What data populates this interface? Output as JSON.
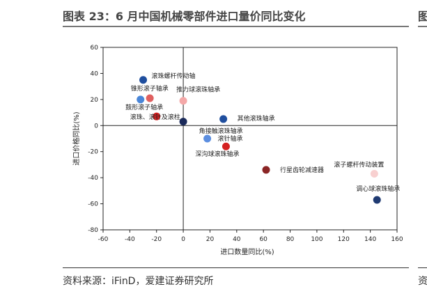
{
  "header": {
    "title": "图表 23：6 月中国机械零部件进口量价同比变化",
    "next_title_fragment": "图"
  },
  "footer": {
    "source": "资料来源：iFinD，爱建证券研究所",
    "next_source_fragment": "资"
  },
  "chart_data": {
    "type": "scatter",
    "xlabel": "进口数量同比(%)",
    "ylabel": "进口价格同比(%)",
    "xlim": [
      -60,
      160
    ],
    "ylim": [
      -80,
      60
    ],
    "xticks": [
      -60,
      -40,
      -20,
      0,
      20,
      40,
      60,
      80,
      100,
      120,
      140,
      160
    ],
    "yticks": [
      -80,
      -60,
      -40,
      -20,
      0,
      20,
      40,
      60
    ],
    "grid": false,
    "points": [
      {
        "label": "滚珠螺杆传动轴",
        "x": -30,
        "y": 35,
        "color": "#1f4e9e"
      },
      {
        "label": "锥形滚子轴承",
        "x": -32,
        "y": 20,
        "color": "#4a86d8"
      },
      {
        "label": "鼓形滚子轴承",
        "x": -25,
        "y": 21,
        "color": "#e06060"
      },
      {
        "label": "推力球滚珠轴承",
        "x": 0,
        "y": 19,
        "color": "#f4a8a8"
      },
      {
        "label": "滚珠、滚针及滚柱",
        "x": -20,
        "y": 7,
        "color": "#d42020"
      },
      {
        "label": "",
        "x": 0,
        "y": 3,
        "color": "#1a2a5a"
      },
      {
        "label": "其他滚珠轴承",
        "x": 30,
        "y": 5,
        "color": "#1f4e9e"
      },
      {
        "label": "角接触滚珠轴承",
        "x": 18,
        "y": -10,
        "color": "#5b8ee0"
      },
      {
        "label": "滚针轴承",
        "x": 32,
        "y": -16,
        "color": "#d42020"
      },
      {
        "label": "深沟球滚珠轴承",
        "x": 32,
        "y": -16,
        "color": ""
      },
      {
        "label": "行星齿轮减速器",
        "x": 62,
        "y": -34,
        "color": "#8b2525"
      },
      {
        "label": "滚子螺杆传动装置",
        "x": 143,
        "y": -37,
        "color": "#f8d0d0"
      },
      {
        "label": "调心球滚珠轴承",
        "x": 145,
        "y": -57,
        "color": "#1f3a72"
      }
    ]
  }
}
